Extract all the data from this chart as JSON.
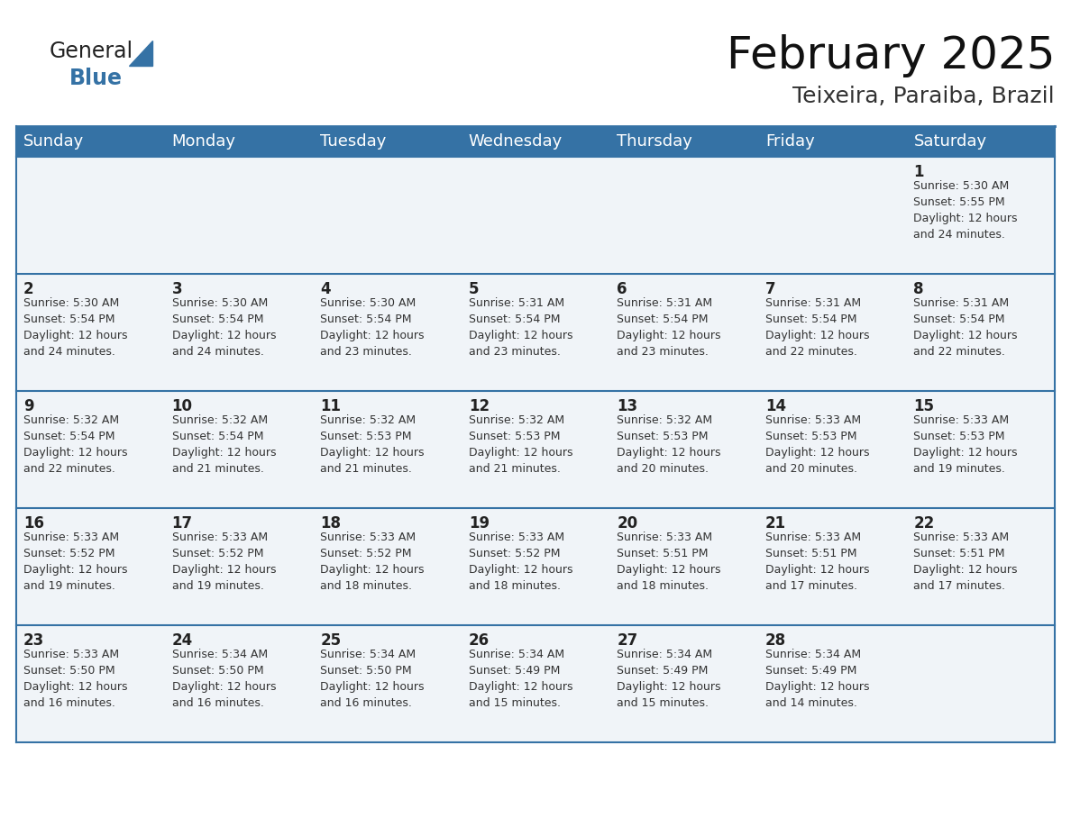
{
  "title": "February 2025",
  "subtitle": "Teixeira, Paraiba, Brazil",
  "header_color": "#3572a5",
  "header_text_color": "#ffffff",
  "background_color": "#ffffff",
  "cell_bg": "#f0f4f8",
  "row_line_color": "#3572a5",
  "outer_line_color": "#3572a5",
  "day_headers": [
    "Sunday",
    "Monday",
    "Tuesday",
    "Wednesday",
    "Thursday",
    "Friday",
    "Saturday"
  ],
  "title_fontsize": 36,
  "subtitle_fontsize": 18,
  "header_fontsize": 13,
  "day_num_fontsize": 11,
  "cell_fontsize": 9,
  "logo_general_color": "#222222",
  "logo_blue_color": "#3572a5",
  "logo_triangle_color": "#3572a5",
  "weeks": [
    [
      {
        "day": "",
        "info": ""
      },
      {
        "day": "",
        "info": ""
      },
      {
        "day": "",
        "info": ""
      },
      {
        "day": "",
        "info": ""
      },
      {
        "day": "",
        "info": ""
      },
      {
        "day": "",
        "info": ""
      },
      {
        "day": "1",
        "info": "Sunrise: 5:30 AM\nSunset: 5:55 PM\nDaylight: 12 hours\nand 24 minutes."
      }
    ],
    [
      {
        "day": "2",
        "info": "Sunrise: 5:30 AM\nSunset: 5:54 PM\nDaylight: 12 hours\nand 24 minutes."
      },
      {
        "day": "3",
        "info": "Sunrise: 5:30 AM\nSunset: 5:54 PM\nDaylight: 12 hours\nand 24 minutes."
      },
      {
        "day": "4",
        "info": "Sunrise: 5:30 AM\nSunset: 5:54 PM\nDaylight: 12 hours\nand 23 minutes."
      },
      {
        "day": "5",
        "info": "Sunrise: 5:31 AM\nSunset: 5:54 PM\nDaylight: 12 hours\nand 23 minutes."
      },
      {
        "day": "6",
        "info": "Sunrise: 5:31 AM\nSunset: 5:54 PM\nDaylight: 12 hours\nand 23 minutes."
      },
      {
        "day": "7",
        "info": "Sunrise: 5:31 AM\nSunset: 5:54 PM\nDaylight: 12 hours\nand 22 minutes."
      },
      {
        "day": "8",
        "info": "Sunrise: 5:31 AM\nSunset: 5:54 PM\nDaylight: 12 hours\nand 22 minutes."
      }
    ],
    [
      {
        "day": "9",
        "info": "Sunrise: 5:32 AM\nSunset: 5:54 PM\nDaylight: 12 hours\nand 22 minutes."
      },
      {
        "day": "10",
        "info": "Sunrise: 5:32 AM\nSunset: 5:54 PM\nDaylight: 12 hours\nand 21 minutes."
      },
      {
        "day": "11",
        "info": "Sunrise: 5:32 AM\nSunset: 5:53 PM\nDaylight: 12 hours\nand 21 minutes."
      },
      {
        "day": "12",
        "info": "Sunrise: 5:32 AM\nSunset: 5:53 PM\nDaylight: 12 hours\nand 21 minutes."
      },
      {
        "day": "13",
        "info": "Sunrise: 5:32 AM\nSunset: 5:53 PM\nDaylight: 12 hours\nand 20 minutes."
      },
      {
        "day": "14",
        "info": "Sunrise: 5:33 AM\nSunset: 5:53 PM\nDaylight: 12 hours\nand 20 minutes."
      },
      {
        "day": "15",
        "info": "Sunrise: 5:33 AM\nSunset: 5:53 PM\nDaylight: 12 hours\nand 19 minutes."
      }
    ],
    [
      {
        "day": "16",
        "info": "Sunrise: 5:33 AM\nSunset: 5:52 PM\nDaylight: 12 hours\nand 19 minutes."
      },
      {
        "day": "17",
        "info": "Sunrise: 5:33 AM\nSunset: 5:52 PM\nDaylight: 12 hours\nand 19 minutes."
      },
      {
        "day": "18",
        "info": "Sunrise: 5:33 AM\nSunset: 5:52 PM\nDaylight: 12 hours\nand 18 minutes."
      },
      {
        "day": "19",
        "info": "Sunrise: 5:33 AM\nSunset: 5:52 PM\nDaylight: 12 hours\nand 18 minutes."
      },
      {
        "day": "20",
        "info": "Sunrise: 5:33 AM\nSunset: 5:51 PM\nDaylight: 12 hours\nand 18 minutes."
      },
      {
        "day": "21",
        "info": "Sunrise: 5:33 AM\nSunset: 5:51 PM\nDaylight: 12 hours\nand 17 minutes."
      },
      {
        "day": "22",
        "info": "Sunrise: 5:33 AM\nSunset: 5:51 PM\nDaylight: 12 hours\nand 17 minutes."
      }
    ],
    [
      {
        "day": "23",
        "info": "Sunrise: 5:33 AM\nSunset: 5:50 PM\nDaylight: 12 hours\nand 16 minutes."
      },
      {
        "day": "24",
        "info": "Sunrise: 5:34 AM\nSunset: 5:50 PM\nDaylight: 12 hours\nand 16 minutes."
      },
      {
        "day": "25",
        "info": "Sunrise: 5:34 AM\nSunset: 5:50 PM\nDaylight: 12 hours\nand 16 minutes."
      },
      {
        "day": "26",
        "info": "Sunrise: 5:34 AM\nSunset: 5:49 PM\nDaylight: 12 hours\nand 15 minutes."
      },
      {
        "day": "27",
        "info": "Sunrise: 5:34 AM\nSunset: 5:49 PM\nDaylight: 12 hours\nand 15 minutes."
      },
      {
        "day": "28",
        "info": "Sunrise: 5:34 AM\nSunset: 5:49 PM\nDaylight: 12 hours\nand 14 minutes."
      },
      {
        "day": "",
        "info": ""
      }
    ]
  ]
}
